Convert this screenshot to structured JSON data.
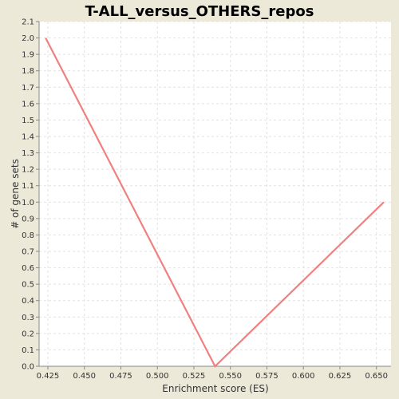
{
  "chart_data": {
    "type": "line",
    "title": "T-ALL_versus_OTHERS_repos",
    "xlabel": "Enrichment score (ES)",
    "ylabel": "# of gene sets",
    "xlim": [
      0.419,
      0.66
    ],
    "ylim": [
      0.0,
      2.1
    ],
    "xticks": [
      "0.425",
      "0.450",
      "0.475",
      "0.500",
      "0.525",
      "0.550",
      "0.575",
      "0.600",
      "0.625",
      "0.650"
    ],
    "yticks": [
      "0.0",
      "0.1",
      "0.2",
      "0.3",
      "0.4",
      "0.5",
      "0.6",
      "0.7",
      "0.8",
      "0.9",
      "1.0",
      "1.1",
      "1.2",
      "1.3",
      "1.4",
      "1.5",
      "1.6",
      "1.7",
      "1.8",
      "1.9",
      "2.0",
      "2.1"
    ],
    "grid": true,
    "series": [
      {
        "color": "#f08080",
        "x": [
          0.4235,
          0.5395,
          0.655
        ],
        "y": [
          2.0,
          0.0,
          1.0
        ]
      }
    ]
  }
}
